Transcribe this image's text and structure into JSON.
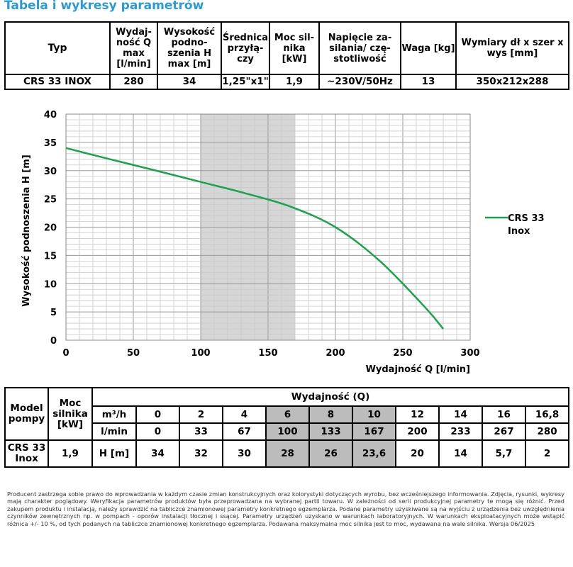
{
  "page_title": "Tabela i wykresy parametrów",
  "params_table": {
    "headers": [
      "Typ",
      "Wydaj-ność Q max [l/min]",
      "Wysokość podno-szenia H max [m]",
      "Średnica przyłą-czy",
      "Moc sil-nika [kW]",
      "Napięcie za-silania/ czę-stotliwość",
      "Waga [kg]",
      "Wymiary dł x szer x wys [mm]"
    ],
    "row": [
      "CRS 33 INOX",
      "280",
      "34",
      "1,25\"x1\"",
      "1,9",
      "~230V/50Hz",
      "13",
      "350x212x288"
    ]
  },
  "chart_data": {
    "type": "line",
    "xlabel": "Wydajność Q [l/min]",
    "ylabel": "Wysokość podnoszenia H [m]",
    "xlim": [
      0,
      300
    ],
    "ylim": [
      0,
      40
    ],
    "xticks": [
      "0",
      "50",
      "100",
      "150",
      "200",
      "250",
      "300"
    ],
    "yticks": [
      "0",
      "5",
      "10",
      "15",
      "20",
      "25",
      "30",
      "35",
      "40"
    ],
    "grid": true,
    "shaded_range": [
      100,
      170
    ],
    "legend_position": "right",
    "series": [
      {
        "name": "CRS 33 Inox",
        "color": "#1aa34a",
        "x": [
          0,
          33,
          67,
          100,
          133,
          167,
          200,
          233,
          267,
          280
        ],
        "y": [
          34,
          32,
          30,
          28,
          26,
          23.6,
          20,
          14,
          5.7,
          2
        ]
      }
    ]
  },
  "perf_table": {
    "model_header": "Model pompy",
    "power_header": "Moc silnika [kW]",
    "q_header": "Wydajność (Q)",
    "m3h_label": "m³/h",
    "lmin_label": "l/min",
    "h_label": "H [m]",
    "m3h": [
      "0",
      "2",
      "4",
      "6",
      "8",
      "10",
      "12",
      "14",
      "16",
      "16,8"
    ],
    "lmin": [
      "0",
      "33",
      "67",
      "100",
      "133",
      "167",
      "200",
      "233",
      "267",
      "280"
    ],
    "model": "CRS 33 Inox",
    "power": "1,9",
    "h": [
      "34",
      "32",
      "30",
      "28",
      "26",
      "23,6",
      "20",
      "14",
      "5,7",
      "2"
    ]
  },
  "footnote": "Producent zastrzega sobie prawo do wprowadzania w każdym czasie zmian konstrukcyjnych oraz kolorystyki dotyczących wyrobu, bez wcześniejszego informowania. Zdjęcia, rysunki, wykresy mają charakter poglądowy. Weryfikacja parametrów produktów była przeprowadzana na wybranej partii towaru. W zależności od serii produkcyjnej parametry te mogą się różnić. Przed zakupem produktu i instalacją, należy sprawdzić na tabliczce znamionowej parametry konkretnego egzemplarza. Podane parametry uzyskiwane są na wyjściu z urządzenia bez uwzględnienia czynników zewnętrznych np. w pompach - oporów instalacji tłocznej i ssącej. Parametry urządzeń uzyskano w warunkach laboratoryjnych. W warunkach eksploatacyjnych może wstąpić różnica +/- 10 %, od tych podanych na tabliczce znamionowej konkretnego egzemplarza. Podawana maksymalna moc silnika jest to moc, wydawana na wale silnika. Wersja 06/2025"
}
